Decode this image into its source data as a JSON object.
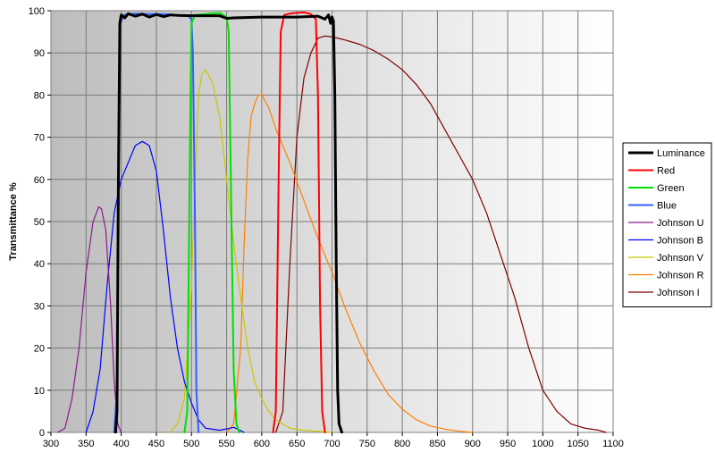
{
  "chart_data": {
    "type": "line",
    "title": "",
    "xlabel": "",
    "ylabel": "Transmittance %",
    "xlim": [
      300,
      1100
    ],
    "ylim": [
      0,
      100
    ],
    "xticks": [
      300,
      350,
      400,
      450,
      500,
      550,
      600,
      650,
      700,
      750,
      800,
      850,
      900,
      950,
      1000,
      1050,
      1100
    ],
    "yticks": [
      0,
      10,
      20,
      30,
      40,
      50,
      60,
      70,
      80,
      90,
      100
    ],
    "grid": true,
    "legend_position": "right",
    "background_gradient": [
      "#bdbdbd",
      "#ffffff"
    ],
    "series": [
      {
        "name": "Luminance",
        "color": "#000000",
        "width": 3,
        "points": [
          [
            392,
            0
          ],
          [
            394,
            5
          ],
          [
            396,
            60
          ],
          [
            398,
            97
          ],
          [
            400,
            99
          ],
          [
            405,
            98.3
          ],
          [
            410,
            99.3
          ],
          [
            420,
            98.7
          ],
          [
            430,
            99.2
          ],
          [
            440,
            98.5
          ],
          [
            450,
            99.1
          ],
          [
            460,
            98.6
          ],
          [
            470,
            99
          ],
          [
            480,
            98.9
          ],
          [
            500,
            98.8
          ],
          [
            520,
            98.8
          ],
          [
            540,
            98.8
          ],
          [
            550,
            98.2
          ],
          [
            560,
            98.3
          ],
          [
            600,
            98.5
          ],
          [
            650,
            98.5
          ],
          [
            680,
            98.7
          ],
          [
            690,
            98
          ],
          [
            695,
            99
          ],
          [
            698,
            97
          ],
          [
            700,
            98.5
          ],
          [
            702,
            97.5
          ],
          [
            704,
            80
          ],
          [
            706,
            40
          ],
          [
            708,
            10
          ],
          [
            710,
            2
          ],
          [
            714,
            0
          ]
        ]
      },
      {
        "name": "Red",
        "color": "#ff0000",
        "width": 2,
        "points": [
          [
            616,
            0
          ],
          [
            620,
            5
          ],
          [
            624,
            60
          ],
          [
            627,
            95
          ],
          [
            632,
            99
          ],
          [
            640,
            99.3
          ],
          [
            650,
            99.5
          ],
          [
            660,
            99.6
          ],
          [
            670,
            99.2
          ],
          [
            677,
            98
          ],
          [
            680,
            80
          ],
          [
            683,
            30
          ],
          [
            686,
            5
          ],
          [
            690,
            0
          ]
        ]
      },
      {
        "name": "Green",
        "color": "#00e000",
        "width": 2,
        "points": [
          [
            490,
            0
          ],
          [
            494,
            5
          ],
          [
            498,
            70
          ],
          [
            500,
            97
          ],
          [
            505,
            99
          ],
          [
            520,
            99.2
          ],
          [
            540,
            99.5
          ],
          [
            550,
            98.5
          ],
          [
            553,
            95
          ],
          [
            556,
            60
          ],
          [
            560,
            15
          ],
          [
            564,
            2
          ],
          [
            568,
            0
          ]
        ]
      },
      {
        "name": "Blue",
        "color": "#3060ff",
        "width": 2,
        "points": [
          [
            390,
            0
          ],
          [
            394,
            10
          ],
          [
            397,
            70
          ],
          [
            399,
            97
          ],
          [
            403,
            99
          ],
          [
            420,
            99.3
          ],
          [
            440,
            99.2
          ],
          [
            460,
            99.2
          ],
          [
            480,
            99
          ],
          [
            495,
            98.8
          ],
          [
            500,
            98
          ],
          [
            502,
            90
          ],
          [
            505,
            50
          ],
          [
            507,
            10
          ],
          [
            510,
            0
          ]
        ]
      },
      {
        "name": "Johnson U",
        "color": "#8b1a8b",
        "width": 1.2,
        "points": [
          [
            310,
            0
          ],
          [
            320,
            1
          ],
          [
            330,
            8
          ],
          [
            340,
            20
          ],
          [
            350,
            38
          ],
          [
            360,
            50
          ],
          [
            368,
            53.5
          ],
          [
            372,
            53
          ],
          [
            378,
            48
          ],
          [
            385,
            30
          ],
          [
            390,
            12
          ],
          [
            395,
            2
          ],
          [
            400,
            0
          ]
        ]
      },
      {
        "name": "Johnson B",
        "color": "#0000ff",
        "width": 1.2,
        "points": [
          [
            350,
            0
          ],
          [
            360,
            5
          ],
          [
            370,
            15
          ],
          [
            380,
            35
          ],
          [
            390,
            52
          ],
          [
            400,
            60
          ],
          [
            410,
            64
          ],
          [
            420,
            68
          ],
          [
            430,
            69
          ],
          [
            440,
            68
          ],
          [
            450,
            62
          ],
          [
            460,
            48
          ],
          [
            470,
            32
          ],
          [
            480,
            20
          ],
          [
            490,
            12
          ],
          [
            500,
            7
          ],
          [
            510,
            3
          ],
          [
            520,
            1
          ],
          [
            540,
            0.5
          ],
          [
            555,
            1
          ],
          [
            560,
            1.2
          ],
          [
            565,
            0.8
          ],
          [
            575,
            0
          ]
        ]
      },
      {
        "name": "Johnson V",
        "color": "#c8c800",
        "width": 1.2,
        "points": [
          [
            470,
            0
          ],
          [
            480,
            2
          ],
          [
            490,
            8
          ],
          [
            500,
            35
          ],
          [
            505,
            60
          ],
          [
            510,
            80
          ],
          [
            515,
            85
          ],
          [
            520,
            86
          ],
          [
            530,
            83
          ],
          [
            540,
            75
          ],
          [
            550,
            60
          ],
          [
            560,
            45
          ],
          [
            570,
            32
          ],
          [
            580,
            20
          ],
          [
            590,
            12
          ],
          [
            600,
            8
          ],
          [
            610,
            5
          ],
          [
            620,
            3
          ],
          [
            640,
            1
          ],
          [
            660,
            0.5
          ],
          [
            700,
            0
          ]
        ]
      },
      {
        "name": "Johnson R",
        "color": "#ff8000",
        "width": 1.2,
        "points": [
          [
            550,
            0
          ],
          [
            560,
            2
          ],
          [
            570,
            20
          ],
          [
            575,
            45
          ],
          [
            580,
            65
          ],
          [
            585,
            75
          ],
          [
            590,
            78
          ],
          [
            595,
            80
          ],
          [
            600,
            80
          ],
          [
            610,
            77
          ],
          [
            620,
            72
          ],
          [
            640,
            64
          ],
          [
            660,
            55
          ],
          [
            680,
            46
          ],
          [
            700,
            38
          ],
          [
            720,
            29
          ],
          [
            740,
            21
          ],
          [
            760,
            14.5
          ],
          [
            780,
            9
          ],
          [
            800,
            5.5
          ],
          [
            820,
            3
          ],
          [
            840,
            1.5
          ],
          [
            860,
            0.8
          ],
          [
            880,
            0.3
          ],
          [
            900,
            0
          ]
        ]
      },
      {
        "name": "Johnson I",
        "color": "#800000",
        "width": 1.2,
        "points": [
          [
            620,
            0
          ],
          [
            630,
            5
          ],
          [
            640,
            40
          ],
          [
            650,
            70
          ],
          [
            660,
            84
          ],
          [
            670,
            90
          ],
          [
            680,
            93.5
          ],
          [
            690,
            94
          ],
          [
            700,
            93.8
          ],
          [
            720,
            93
          ],
          [
            740,
            92
          ],
          [
            760,
            90.5
          ],
          [
            780,
            88.5
          ],
          [
            800,
            86
          ],
          [
            820,
            82.5
          ],
          [
            840,
            78
          ],
          [
            860,
            72
          ],
          [
            880,
            66
          ],
          [
            900,
            60
          ],
          [
            920,
            52
          ],
          [
            940,
            42
          ],
          [
            960,
            32
          ],
          [
            980,
            20
          ],
          [
            1000,
            10
          ],
          [
            1020,
            5
          ],
          [
            1040,
            2
          ],
          [
            1060,
            1
          ],
          [
            1080,
            0.5
          ],
          [
            1090,
            0
          ]
        ]
      }
    ]
  }
}
